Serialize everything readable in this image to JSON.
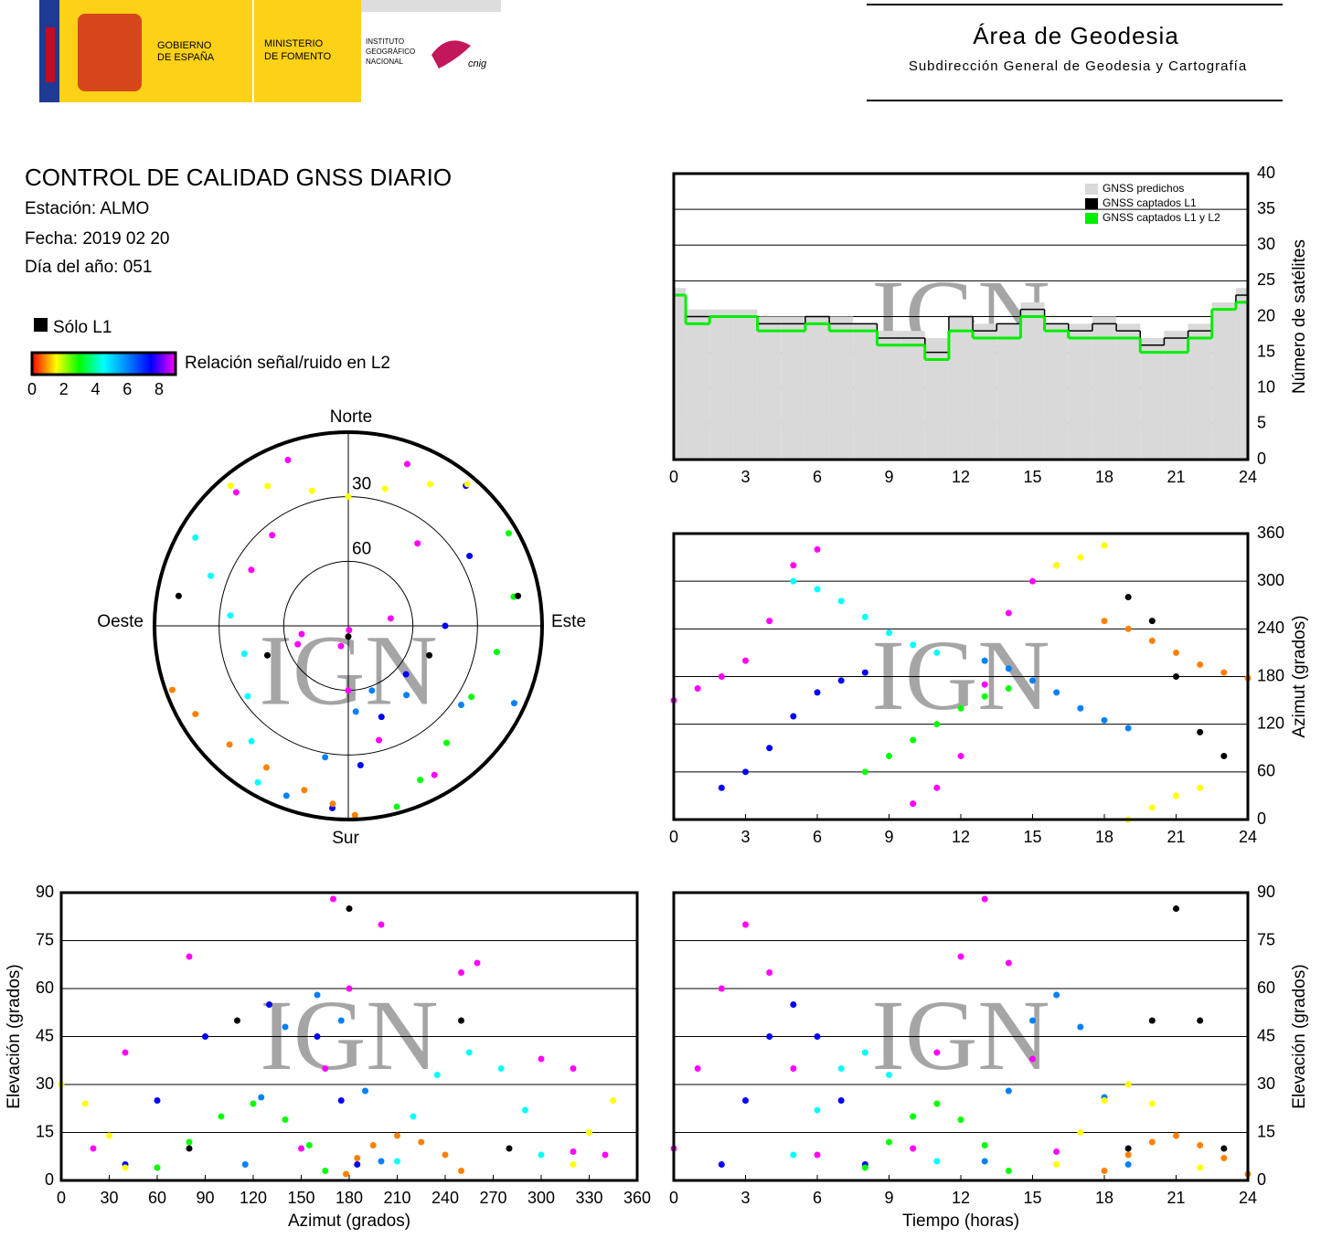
{
  "header": {
    "government": [
      "GOBIERNO",
      "DE ESPAÑA"
    ],
    "ministry": [
      "MINISTERIO",
      "DE FOMENTO"
    ],
    "institute": [
      "INSTITUTO",
      "GEOGRÁFICO",
      "NACIONAL"
    ],
    "cnig": "cnig",
    "area": "Área de Geodesia",
    "subdirectorate": "Subdirección General de Geodesia y Cartografía"
  },
  "info": {
    "title": "CONTROL DE CALIDAD GNSS DIARIO",
    "station": "Estación: ALMO",
    "date": "Fecha: 2019 02 20",
    "doy": "Día del año: 051"
  },
  "legend": {
    "l1_only": "Sólo L1",
    "colorbar_label": "Relación señal/ruido en L2",
    "colorbar_ticks": [
      0,
      2,
      4,
      6,
      8
    ],
    "colorbar_lim": [
      0,
      8
    ]
  },
  "watermark": "IGN",
  "chart_data": [
    {
      "type": "step",
      "x": [
        0,
        1,
        2,
        3,
        4,
        5,
        6,
        7,
        8,
        9,
        10,
        11,
        12,
        13,
        14,
        15,
        16,
        17,
        18,
        19,
        20,
        21,
        22,
        23,
        24
      ],
      "series": [
        {
          "name": "GNSS predichos",
          "color": "#d9d9d9",
          "values": [
            24,
            21,
            21,
            21,
            20,
            20,
            20,
            20,
            19,
            18,
            18,
            17,
            20,
            19,
            19,
            22,
            19,
            19,
            20,
            19,
            17,
            18,
            19,
            22,
            24
          ]
        },
        {
          "name": "GNSS captados L1",
          "color": "#000000",
          "values": [
            23,
            20,
            20,
            20,
            19,
            19,
            20,
            19,
            19,
            17,
            17,
            15,
            20,
            18,
            19,
            21,
            19,
            18,
            19,
            18,
            16,
            17,
            18,
            21,
            23
          ]
        },
        {
          "name": "GNSS captados L1 y L2",
          "color": "#00ee00",
          "values": [
            23,
            19,
            20,
            20,
            18,
            18,
            19,
            18,
            18,
            16,
            16,
            14,
            18,
            17,
            17,
            20,
            18,
            17,
            17,
            17,
            15,
            15,
            17,
            21,
            22
          ]
        }
      ],
      "xlim": [
        0,
        24
      ],
      "xticks": [
        0,
        3,
        6,
        9,
        12,
        15,
        18,
        21,
        24
      ],
      "ylim": [
        0,
        40
      ],
      "yticks": [
        0,
        5,
        10,
        15,
        20,
        25,
        30,
        35,
        40
      ],
      "ylabel": "Número de satélites",
      "grid": true,
      "legend": "upper right"
    },
    {
      "type": "polar",
      "north": "Norte",
      "south": "Sur",
      "east": "Este",
      "west": "Oeste",
      "rticks": [
        30,
        60
      ],
      "series": [
        {
          "color": "#ff00ff",
          "azimuth": [
            150,
            165,
            180,
            200,
            250,
            320,
            340
          ],
          "elevation": [
            10,
            35,
            60,
            80,
            65,
            35,
            8
          ]
        },
        {
          "color": "#0000ff",
          "azimuth": [
            40,
            60,
            90,
            130,
            160,
            175,
            185
          ],
          "elevation": [
            5,
            25,
            45,
            55,
            45,
            25,
            5
          ]
        },
        {
          "color": "#00ffff",
          "azimuth": [
            300,
            290,
            275,
            255,
            235,
            220,
            210
          ],
          "elevation": [
            8,
            22,
            35,
            40,
            33,
            20,
            6
          ]
        },
        {
          "color": "#00ff00",
          "azimuth": [
            60,
            80,
            100,
            120,
            140,
            155,
            165
          ],
          "elevation": [
            4,
            12,
            20,
            24,
            19,
            11,
            3
          ]
        },
        {
          "color": "#ff00ff",
          "azimuth": [
            20,
            40,
            80,
            170,
            260,
            300,
            320
          ],
          "elevation": [
            10,
            40,
            70,
            88,
            68,
            38,
            9
          ]
        },
        {
          "color": "#0080ff",
          "azimuth": [
            200,
            190,
            175,
            160,
            140,
            125,
            115
          ],
          "elevation": [
            6,
            28,
            50,
            58,
            48,
            26,
            5
          ]
        },
        {
          "color": "#ffff00",
          "azimuth": [
            320,
            330,
            345,
            0,
            15,
            30,
            40
          ],
          "elevation": [
            5,
            15,
            25,
            30,
            24,
            14,
            4
          ]
        },
        {
          "color": "#ff8000",
          "azimuth": [
            250,
            240,
            225,
            210,
            195,
            185,
            178
          ],
          "elevation": [
            3,
            8,
            12,
            14,
            11,
            7,
            2
          ]
        },
        {
          "color": "#000000",
          "azimuth": [
            280,
            250,
            180,
            110,
            80
          ],
          "elevation": [
            10,
            50,
            85,
            50,
            10
          ]
        }
      ]
    },
    {
      "type": "scatter",
      "ylabel": "Azimut (grados)",
      "axis_side": "right",
      "xlim": [
        0,
        24
      ],
      "xticks": [
        0,
        3,
        6,
        9,
        12,
        15,
        18,
        21,
        24
      ],
      "ylim": [
        0,
        360
      ],
      "yticks": [
        0,
        60,
        120,
        180,
        240,
        300,
        360
      ],
      "grid": true,
      "series": [
        {
          "color": "#ff00ff",
          "x": [
            0,
            1,
            2,
            3,
            4,
            5,
            6
          ],
          "values": [
            150,
            165,
            180,
            200,
            250,
            320,
            340
          ]
        },
        {
          "color": "#0000ff",
          "x": [
            2,
            3,
            4,
            5,
            6,
            7,
            8
          ],
          "values": [
            40,
            60,
            90,
            130,
            160,
            175,
            185
          ]
        },
        {
          "color": "#00ffff",
          "x": [
            5,
            6,
            7,
            8,
            9,
            10,
            11
          ],
          "values": [
            300,
            290,
            275,
            255,
            235,
            220,
            210
          ]
        },
        {
          "color": "#00ff00",
          "x": [
            8,
            9,
            10,
            11,
            12,
            13,
            14
          ],
          "values": [
            60,
            80,
            100,
            120,
            140,
            155,
            165
          ]
        },
        {
          "color": "#ff00ff",
          "x": [
            10,
            11,
            12,
            13,
            14,
            15,
            16
          ],
          "values": [
            20,
            40,
            80,
            170,
            260,
            300,
            320
          ]
        },
        {
          "color": "#0080ff",
          "x": [
            13,
            14,
            15,
            16,
            17,
            18,
            19
          ],
          "values": [
            200,
            190,
            175,
            160,
            140,
            125,
            115
          ]
        },
        {
          "color": "#ffff00",
          "x": [
            16,
            17,
            18,
            19,
            20,
            21,
            22
          ],
          "values": [
            320,
            330,
            345,
            0,
            15,
            30,
            40
          ]
        },
        {
          "color": "#ff8000",
          "x": [
            18,
            19,
            20,
            21,
            22,
            23,
            24
          ],
          "values": [
            250,
            240,
            225,
            210,
            195,
            185,
            178
          ]
        },
        {
          "color": "#000000",
          "x": [
            19,
            20,
            21,
            22,
            23
          ],
          "values": [
            280,
            250,
            180,
            110,
            80
          ]
        }
      ]
    },
    {
      "type": "scatter",
      "xlabel": "Azimut (grados)",
      "ylabel": "Elevación (grados)",
      "axis_side": "left",
      "xlim": [
        0,
        360
      ],
      "xticks": [
        0,
        30,
        60,
        90,
        120,
        150,
        180,
        210,
        240,
        270,
        300,
        330,
        360
      ],
      "ylim": [
        0,
        90
      ],
      "yticks": [
        0,
        15,
        30,
        45,
        60,
        75,
        90
      ],
      "grid": true,
      "series": [
        {
          "color": "#ff00ff",
          "x": [
            150,
            165,
            180,
            200,
            250,
            320,
            340
          ],
          "values": [
            10,
            35,
            60,
            80,
            65,
            35,
            8
          ]
        },
        {
          "color": "#0000ff",
          "x": [
            40,
            60,
            90,
            130,
            160,
            175,
            185
          ],
          "values": [
            5,
            25,
            45,
            55,
            45,
            25,
            5
          ]
        },
        {
          "color": "#00ffff",
          "x": [
            300,
            290,
            275,
            255,
            235,
            220,
            210
          ],
          "values": [
            8,
            22,
            35,
            40,
            33,
            20,
            6
          ]
        },
        {
          "color": "#00ff00",
          "x": [
            60,
            80,
            100,
            120,
            140,
            155,
            165
          ],
          "values": [
            4,
            12,
            20,
            24,
            19,
            11,
            3
          ]
        },
        {
          "color": "#ff00ff",
          "x": [
            20,
            40,
            80,
            170,
            260,
            300,
            320
          ],
          "values": [
            10,
            40,
            70,
            88,
            68,
            38,
            9
          ]
        },
        {
          "color": "#0080ff",
          "x": [
            200,
            190,
            175,
            160,
            140,
            125,
            115
          ],
          "values": [
            6,
            28,
            50,
            58,
            48,
            26,
            5
          ]
        },
        {
          "color": "#ffff00",
          "x": [
            320,
            330,
            345,
            0,
            15,
            30,
            40
          ],
          "values": [
            5,
            15,
            25,
            30,
            24,
            14,
            4
          ]
        },
        {
          "color": "#ff8000",
          "x": [
            250,
            240,
            225,
            210,
            195,
            185,
            178
          ],
          "values": [
            3,
            8,
            12,
            14,
            11,
            7,
            2
          ]
        },
        {
          "color": "#000000",
          "x": [
            280,
            250,
            180,
            110,
            80
          ],
          "values": [
            10,
            50,
            85,
            50,
            10
          ]
        }
      ]
    },
    {
      "type": "scatter",
      "xlabel": "Tiempo (horas)",
      "ylabel": "Elevación (grados)",
      "axis_side": "right",
      "xlim": [
        0,
        24
      ],
      "xticks": [
        0,
        3,
        6,
        9,
        12,
        15,
        18,
        21,
        24
      ],
      "ylim": [
        0,
        90
      ],
      "yticks": [
        0,
        15,
        30,
        45,
        60,
        75,
        90
      ],
      "grid": true,
      "series": [
        {
          "color": "#ff00ff",
          "x": [
            0,
            1,
            2,
            3,
            4,
            5,
            6
          ],
          "values": [
            10,
            35,
            60,
            80,
            65,
            35,
            8
          ]
        },
        {
          "color": "#0000ff",
          "x": [
            2,
            3,
            4,
            5,
            6,
            7,
            8
          ],
          "values": [
            5,
            25,
            45,
            55,
            45,
            25,
            5
          ]
        },
        {
          "color": "#00ffff",
          "x": [
            5,
            6,
            7,
            8,
            9,
            10,
            11
          ],
          "values": [
            8,
            22,
            35,
            40,
            33,
            20,
            6
          ]
        },
        {
          "color": "#00ff00",
          "x": [
            8,
            9,
            10,
            11,
            12,
            13,
            14
          ],
          "values": [
            4,
            12,
            20,
            24,
            19,
            11,
            3
          ]
        },
        {
          "color": "#ff00ff",
          "x": [
            10,
            11,
            12,
            13,
            14,
            15,
            16
          ],
          "values": [
            10,
            40,
            70,
            88,
            68,
            38,
            9
          ]
        },
        {
          "color": "#0080ff",
          "x": [
            13,
            14,
            15,
            16,
            17,
            18,
            19
          ],
          "values": [
            6,
            28,
            50,
            58,
            48,
            26,
            5
          ]
        },
        {
          "color": "#ffff00",
          "x": [
            16,
            17,
            18,
            19,
            20,
            21,
            22
          ],
          "values": [
            5,
            15,
            25,
            30,
            24,
            14,
            4
          ]
        },
        {
          "color": "#ff8000",
          "x": [
            18,
            19,
            20,
            21,
            22,
            23,
            24
          ],
          "values": [
            3,
            8,
            12,
            14,
            11,
            7,
            2
          ]
        },
        {
          "color": "#000000",
          "x": [
            19,
            20,
            21,
            22,
            23
          ],
          "values": [
            10,
            50,
            85,
            50,
            10
          ]
        }
      ]
    }
  ]
}
